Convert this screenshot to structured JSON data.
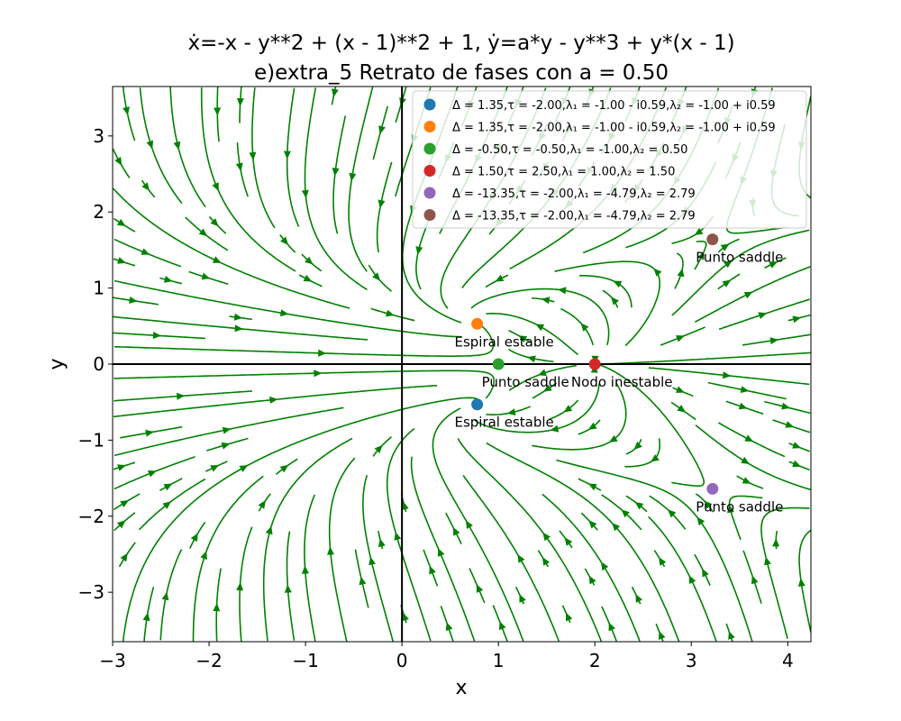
{
  "chart_data": {
    "type": "streamplot",
    "title": {
      "line1": "ẋ=-x - y**2 + (x - 1)**2 + 1, ẏ=a*y - y**3 + y*(x - 1)",
      "line2": "e)extra_5 Retrato de fases con a = 0.50"
    },
    "xlabel": "x",
    "ylabel": "y",
    "xlim": [
      -3,
      4.24
    ],
    "ylim": [
      -3.65,
      3.65
    ],
    "xticks": [
      -3,
      -2,
      -1,
      0,
      1,
      2,
      3,
      4
    ],
    "yticks": [
      -3,
      -2,
      -1,
      0,
      1,
      2,
      3
    ],
    "xtick_labels": [
      "−3",
      "−2",
      "−1",
      "0",
      "1",
      "2",
      "3",
      "4"
    ],
    "ytick_labels": [
      "−3",
      "−2",
      "−1",
      "0",
      "1",
      "2",
      "3"
    ],
    "stream_color": "#008000",
    "legend_position": "top-right",
    "equilibria": [
      {
        "x": 0.78,
        "y": -0.53,
        "color": "#1f77b4",
        "annotation": "Espiral estable",
        "legend": "Δ = 1.35,τ = -2.00,λ₁ = -1.00 - i0.59,λ₂ = -1.00 + i0.59"
      },
      {
        "x": 0.78,
        "y": 0.53,
        "color": "#ff7f0e",
        "annotation": "Espiral estable",
        "legend": "Δ = 1.35,τ = -2.00,λ₁ = -1.00 - i0.59,λ₂ = -1.00 + i0.59"
      },
      {
        "x": 1.0,
        "y": 0.0,
        "color": "#2ca02c",
        "annotation": "Punto saddle",
        "legend": "Δ = -0.50,τ = -0.50,λ₁ = -1.00,λ₂ = 0.50"
      },
      {
        "x": 2.0,
        "y": 0.0,
        "color": "#d62728",
        "annotation": "Nodo inestable",
        "legend": "Δ = 1.50,τ = 2.50,λ₁ = 1.00,λ₂ = 1.50"
      },
      {
        "x": 3.22,
        "y": -1.64,
        "color": "#9467bd",
        "annotation": "Punto saddle",
        "legend": "Δ = -13.35,τ = -2.00,λ₁ = -4.79,λ₂ = 2.79"
      },
      {
        "x": 3.22,
        "y": 1.64,
        "color": "#8c564b",
        "annotation": "Punto saddle",
        "legend": "Δ = -13.35,τ = -2.00,λ₁ = -4.79,λ₂ = 2.79"
      }
    ]
  }
}
